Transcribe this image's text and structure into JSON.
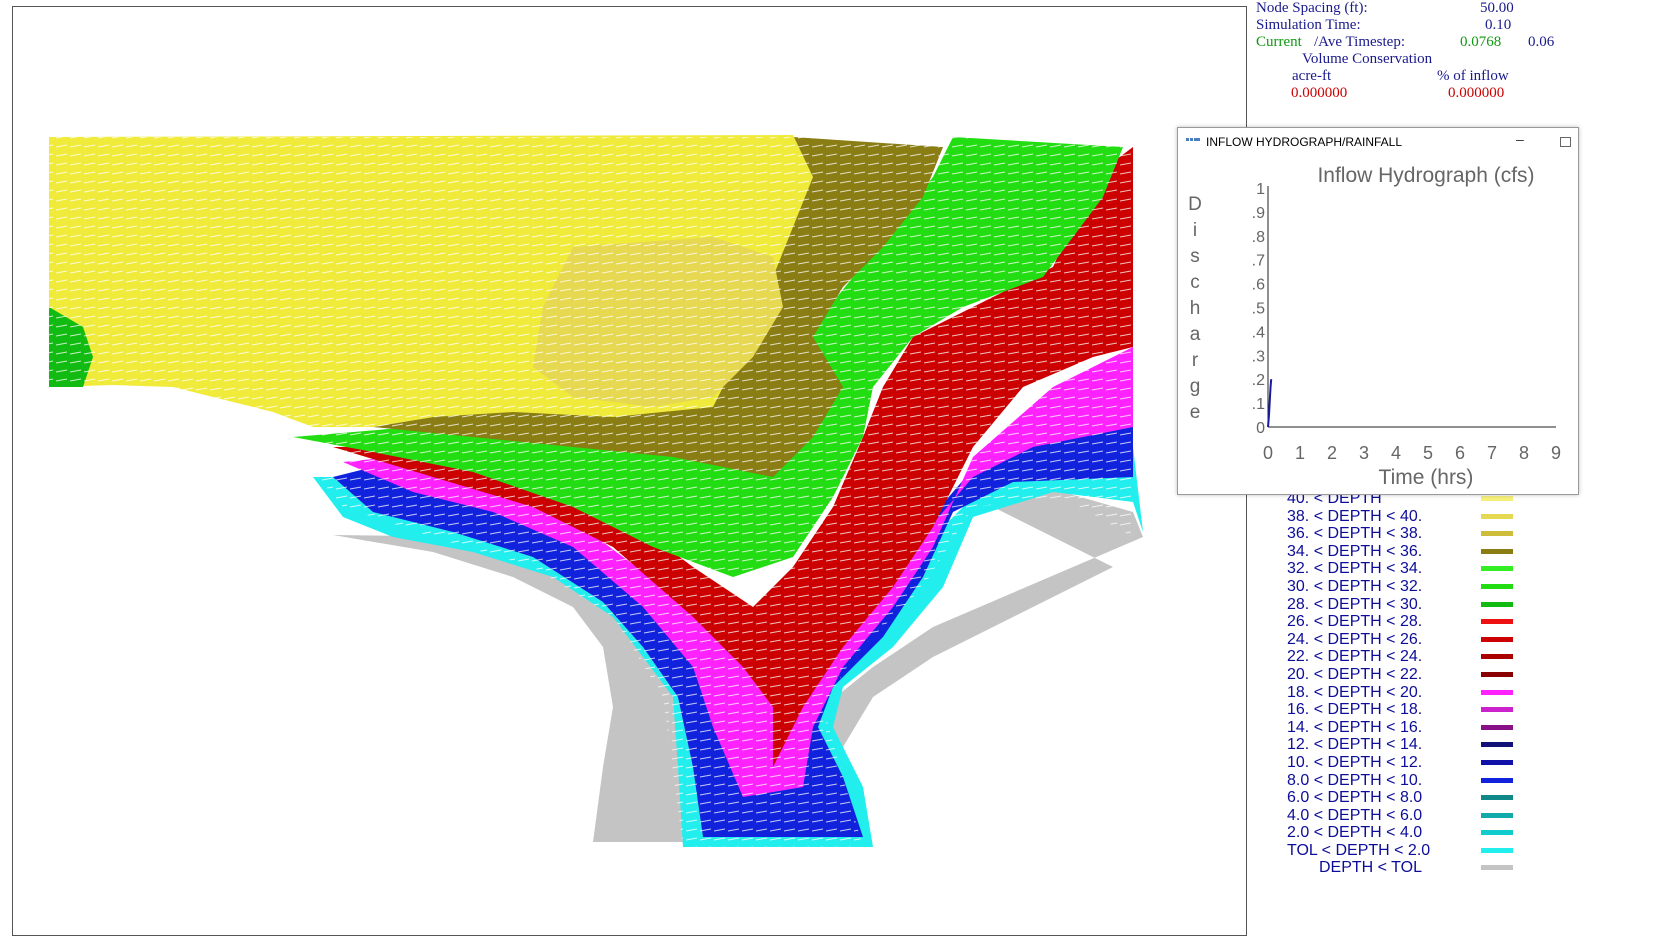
{
  "status": {
    "node_spacing_label": "Node Spacing (ft):",
    "node_spacing_value": "50.00",
    "sim_time_label": "Simulation Time:",
    "sim_time_value": "0.10",
    "timestep_label_current": "Current",
    "timestep_label_rest": "/Ave Timestep:",
    "timestep_current": "0.0768",
    "timestep_ave": "0.06",
    "volume_title": "Volume Conservation",
    "col_acreft": "acre-ft",
    "col_pct": "% of inflow",
    "val_acreft": "0.000000",
    "val_pct": "0.000000"
  },
  "hydro_window": {
    "title": "INFLOW HYDROGRAPH/RAINFALL",
    "minimize_glyph": "–",
    "chart_title": "Inflow Hydrograph (cfs)",
    "ylabel_letters": [
      "D",
      "i",
      "s",
      "c",
      "h",
      "a",
      "r",
      "g",
      "e"
    ],
    "xlabel": "Time (hrs)",
    "chart_data": {
      "type": "line",
      "title": "Inflow Hydrograph (cfs)",
      "xlabel": "Time (hrs)",
      "ylabel": "Discharge",
      "xlim": [
        0,
        9
      ],
      "ylim": [
        0,
        1
      ],
      "x_ticks": [
        "0",
        "1",
        "2",
        "3",
        "4",
        "5",
        "6",
        "7",
        "8",
        "9"
      ],
      "y_ticks": [
        "0",
        ".1",
        ".2",
        ".3",
        ".4",
        ".5",
        ".6",
        ".7",
        ".8",
        ".9",
        "1"
      ],
      "series": [
        {
          "color": "#1a1aa0",
          "x": [
            0.0,
            0.03,
            0.06,
            0.08,
            0.1
          ],
          "y": [
            0.0,
            0.05,
            0.12,
            0.17,
            0.2
          ]
        }
      ]
    }
  },
  "legend": {
    "items": [
      {
        "label": "40. < DEPTH",
        "color": "#f5f07a",
        "indent": 1
      },
      {
        "label": "38. < DEPTH < 40.",
        "color": "#e6d850",
        "indent": 0
      },
      {
        "label": "36. < DEPTH < 38.",
        "color": "#cdbd3a",
        "indent": 0
      },
      {
        "label": "34. < DEPTH < 36.",
        "color": "#8a7d14",
        "indent": 0
      },
      {
        "label": "32. < DEPTH < 34.",
        "color": "#33ee22",
        "indent": 0
      },
      {
        "label": "30. < DEPTH < 32.",
        "color": "#22dd11",
        "indent": 0
      },
      {
        "label": "28. < DEPTH < 30.",
        "color": "#11bb11",
        "indent": 0
      },
      {
        "label": "26. < DEPTH < 28.",
        "color": "#ee1111",
        "indent": 0
      },
      {
        "label": "24. < DEPTH < 26.",
        "color": "#cc0000",
        "indent": 0
      },
      {
        "label": "22. < DEPTH < 24.",
        "color": "#aa0000",
        "indent": 0
      },
      {
        "label": "20. < DEPTH < 22.",
        "color": "#880000",
        "indent": 0
      },
      {
        "label": "18. < DEPTH < 20.",
        "color": "#ff22ff",
        "indent": 0
      },
      {
        "label": "16. < DEPTH < 18.",
        "color": "#cc22cc",
        "indent": 0
      },
      {
        "label": "14. < DEPTH < 16.",
        "color": "#881188",
        "indent": 0
      },
      {
        "label": "12. < DEPTH < 14.",
        "color": "#111177",
        "indent": 0
      },
      {
        "label": "10. < DEPTH < 12.",
        "color": "#1111aa",
        "indent": 0
      },
      {
        "label": "8.0 < DEPTH < 10.",
        "color": "#1122dd",
        "indent": 0
      },
      {
        "label": "6.0 < DEPTH < 8.0",
        "color": "#118888",
        "indent": 0
      },
      {
        "label": "4.0 < DEPTH < 6.0",
        "color": "#11aaaa",
        "indent": 0
      },
      {
        "label": "2.0 < DEPTH < 4.0",
        "color": "#11cccc",
        "indent": 0
      },
      {
        "label": "TOL < DEPTH < 2.0",
        "color": "#22eeee",
        "indent": 0
      },
      {
        "label": "DEPTH < TOL",
        "color": "#c4c4c4",
        "indent": 2
      }
    ]
  }
}
